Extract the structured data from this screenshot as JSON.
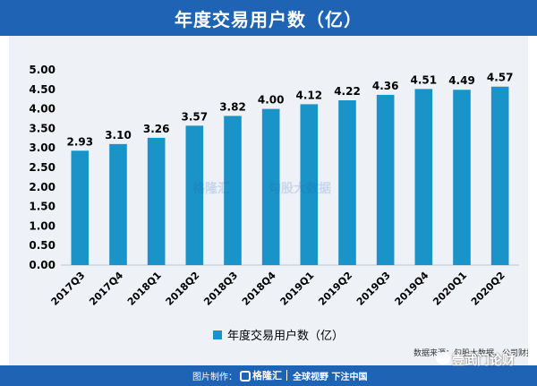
{
  "title": "年度交易用户数（亿）",
  "chart_data": {
    "type": "bar",
    "categories": [
      "2017Q3",
      "2017Q4",
      "2018Q1",
      "2018Q2",
      "2018Q3",
      "2018Q4",
      "2019Q1",
      "2019Q2",
      "2019Q3",
      "2019Q4",
      "2020Q1",
      "2020Q2"
    ],
    "values": [
      2.93,
      3.1,
      3.26,
      3.57,
      3.82,
      4.0,
      4.12,
      4.22,
      4.36,
      4.51,
      4.49,
      4.57
    ],
    "data_labels": [
      "2.93",
      "3.10",
      "3.26",
      "3.57",
      "3.82",
      "4.00",
      "4.12",
      "4.22",
      "4.36",
      "4.51",
      "4.49",
      "4.57"
    ],
    "y_ticks": [
      "0.00",
      "0.50",
      "1.00",
      "1.50",
      "2.00",
      "2.50",
      "3.00",
      "3.50",
      "4.00",
      "4.50",
      "5.00"
    ],
    "ylim": [
      0,
      5
    ],
    "series": [
      {
        "name": "年度交易用户数（亿）",
        "values": [
          2.93,
          3.1,
          3.26,
          3.57,
          3.82,
          4.0,
          4.12,
          4.22,
          4.36,
          4.51,
          4.49,
          4.57
        ]
      }
    ],
    "legend_position": "bottom",
    "grid": false,
    "bar_color": "#1a94c8"
  },
  "source": "数据来源：勾股大数据、公司财报",
  "center_watermark": [
    "格隆汇",
    "勾股大数据"
  ],
  "footer": {
    "credit": "图片制作：",
    "brand": "格隆汇",
    "slogan": "全球视野 下注中国"
  },
  "watermark": "壹武门论财",
  "colors": {
    "header": "#1f63b4",
    "panel": "#eef2f7",
    "bar": "#1a94c8"
  }
}
